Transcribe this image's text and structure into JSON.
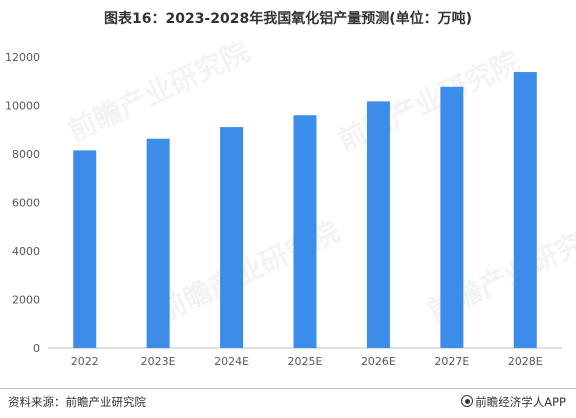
{
  "title": "图表16：2023-2028年我国氧化铝产量预测(单位：万吨)",
  "footer": {
    "source": "资料来源：前瞻产业研究院",
    "brand": "前瞻经济学人APP"
  },
  "watermark": {
    "text": "前瞻产业研究院"
  },
  "colors": {
    "bar": "#3b8de9",
    "axis_text": "#595959",
    "axis_line": "#bfbfbf"
  },
  "chart_data": {
    "type": "bar",
    "title": "图表16：2023-2028年我国氧化铝产量预测(单位：万吨)",
    "xlabel": "",
    "ylabel": "",
    "categories": [
      "2022",
      "2023E",
      "2024E",
      "2025E",
      "2026E",
      "2027E",
      "2028E"
    ],
    "values": [
      8150,
      8630,
      9110,
      9600,
      10170,
      10770,
      11380
    ],
    "ylim": [
      0,
      12000
    ],
    "yticks": [
      0,
      2000,
      4000,
      6000,
      8000,
      10000,
      12000
    ],
    "grid": false,
    "legend": "none"
  }
}
